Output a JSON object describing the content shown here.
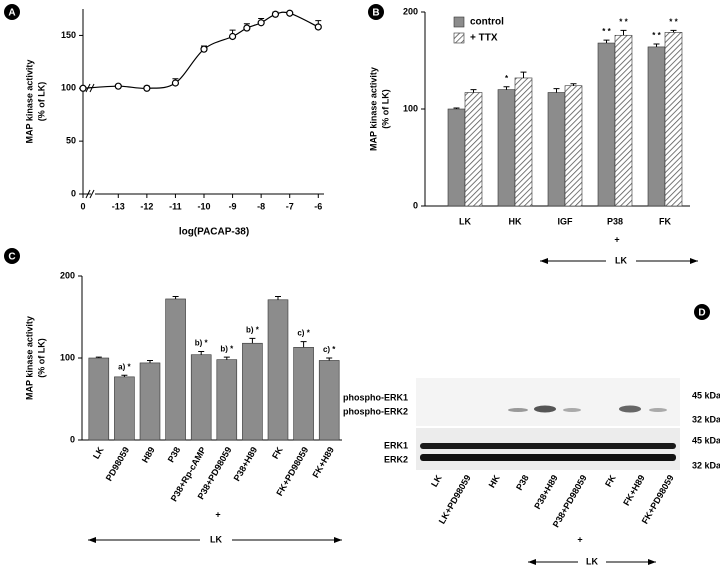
{
  "chart_data": [
    {
      "panel": "A",
      "type": "scatter",
      "x_label": "log(PACAP-38)",
      "y_label": [
        "MAP kinase activity",
        "(% of LK)"
      ],
      "x": [
        0,
        -13,
        -12,
        -11,
        -10,
        -9,
        -8.5,
        -8,
        -7.5,
        -7,
        -6
      ],
      "values": [
        100,
        102,
        100,
        105,
        137,
        149,
        157,
        162,
        170,
        171,
        158
      ],
      "errors": [
        1,
        1,
        2,
        4,
        3,
        6,
        4,
        4,
        2,
        1,
        6
      ],
      "xlim": [
        -13.5,
        -5.8
      ],
      "xticks": [
        0,
        -13,
        -12,
        -11,
        -10,
        -9,
        -8,
        -7,
        -6
      ],
      "ylim": [
        0,
        175
      ],
      "yticks": [
        0,
        50,
        100,
        150
      ],
      "color": "#000000"
    },
    {
      "panel": "B",
      "type": "bar",
      "y_label": [
        "MAP kinase activity",
        "(% of LK)"
      ],
      "categories": [
        "LK",
        "HK",
        "IGF",
        "P38",
        "FK"
      ],
      "series": [
        {
          "name": "control",
          "color": "#8c8c8c",
          "pattern": "solid",
          "values": [
            100,
            120,
            117,
            168,
            164
          ],
          "errors": [
            1,
            3,
            4,
            3,
            3
          ],
          "annotations": [
            null,
            "*",
            null,
            "* *",
            "* *"
          ]
        },
        {
          "name": "+ TTX",
          "color": "#8c8c8c",
          "pattern": "hatch",
          "values": [
            117,
            132,
            124,
            176,
            179
          ],
          "errors": [
            3,
            6,
            2,
            5,
            2
          ],
          "annotations": [
            null,
            null,
            null,
            "* *",
            "* *"
          ]
        }
      ],
      "ylim": [
        0,
        200
      ],
      "yticks": [
        0,
        100,
        200
      ],
      "legend": "top-left",
      "plus": "+",
      "group_label": "LK"
    },
    {
      "panel": "C",
      "type": "bar",
      "y_label": [
        "MAP kinase activity",
        "(% of LK)"
      ],
      "categories": [
        "LK",
        "PD98059",
        "H89",
        "P38",
        "P38+Rp-cAMP",
        "P38+PD98059",
        "P38+H89",
        "FK",
        "FK+PD98059",
        "FK+H89"
      ],
      "series": [
        {
          "name": null,
          "color": "#8c8c8c",
          "pattern": "solid",
          "values": [
            100,
            77,
            94,
            172,
            104,
            98,
            118,
            171,
            113,
            97
          ],
          "errors": [
            1,
            2,
            3,
            3,
            4,
            3,
            6,
            4,
            7,
            3
          ],
          "annotations": [
            null,
            "a) *",
            null,
            null,
            "b) *",
            "b) *",
            "b) *",
            null,
            "c) *",
            "c) *"
          ]
        }
      ],
      "ylim": [
        0,
        200
      ],
      "yticks": [
        0,
        100,
        200
      ],
      "plus": "+",
      "group_label": "LK"
    }
  ],
  "blot": {
    "panel": "D",
    "bands": [
      "phospho-ERK1",
      "phospho-ERK2",
      "ERK1",
      "ERK2"
    ],
    "markers": [
      "45 kDa",
      "32 kDa",
      "45 kDa",
      "32 kDa"
    ],
    "lanes": [
      "LK",
      "LK+PD98059",
      "HK",
      "P38",
      "P38+H89",
      "P38+PD98059",
      "FK",
      "FK+H89",
      "FK+PD98059"
    ],
    "plus": "+",
    "group_label": "LK"
  }
}
